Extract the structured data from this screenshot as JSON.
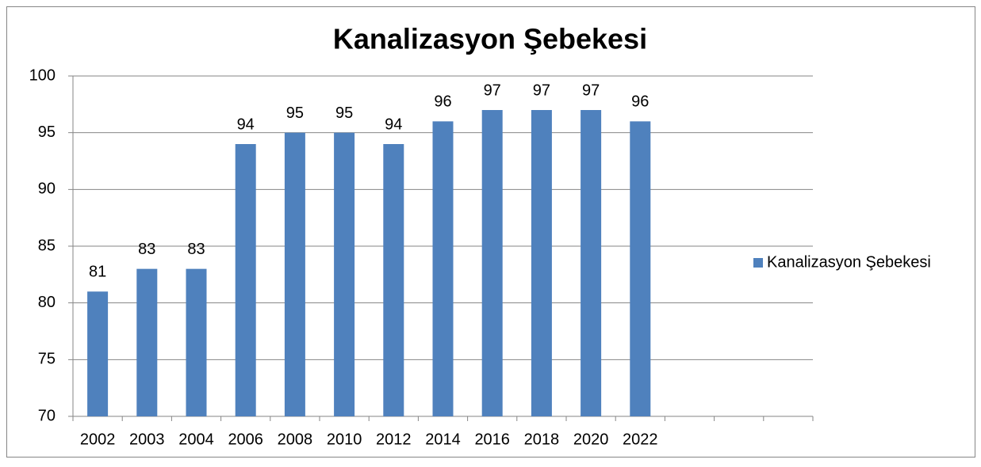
{
  "chart_data": {
    "type": "bar",
    "title": "Kanalizasyon Şebekesi",
    "categories": [
      "2002",
      "2003",
      "2004",
      "2006",
      "2008",
      "2010",
      "2012",
      "2014",
      "2016",
      "2018",
      "2020",
      "2022",
      null,
      null,
      null
    ],
    "series": [
      {
        "name": "Kanalizasyon Şebekesi",
        "color": "#4f81bd",
        "values": [
          81,
          83,
          83,
          94,
          95,
          95,
          94,
          96,
          97,
          97,
          97,
          96,
          null,
          null,
          null
        ]
      }
    ],
    "ylim": [
      70,
      100
    ],
    "yticks": [
      70,
      75,
      80,
      85,
      90,
      95,
      100
    ],
    "grid": true,
    "legend": "right",
    "data_labels": true
  }
}
